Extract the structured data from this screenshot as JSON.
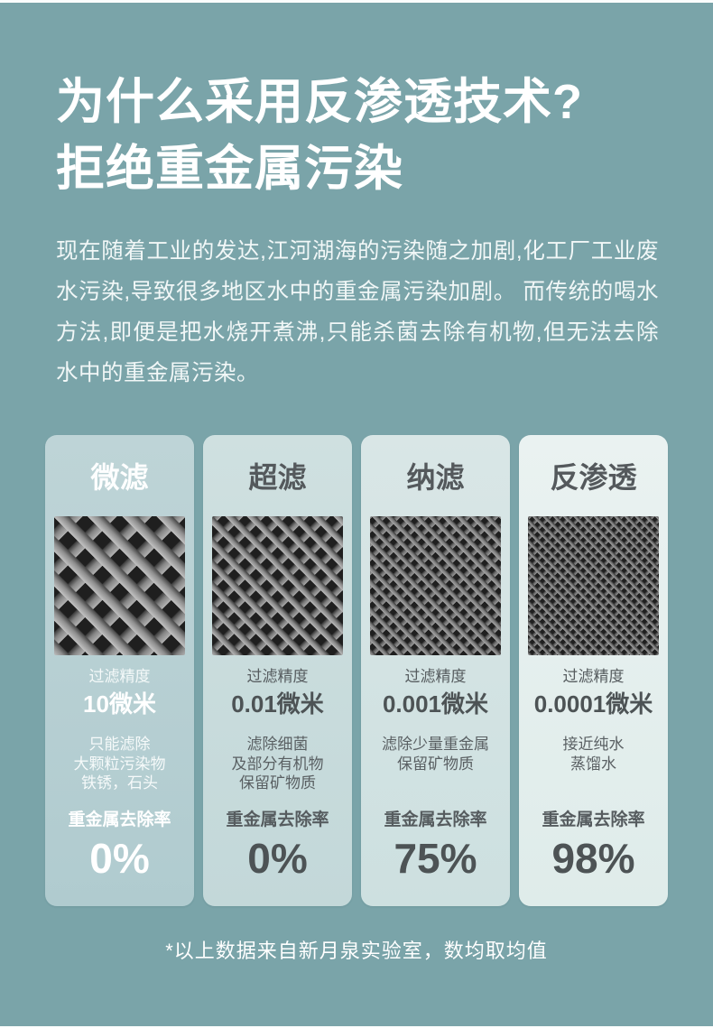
{
  "header": {
    "title_line1": "为什么采用反渗透技术?",
    "title_line2": "拒绝重金属污染"
  },
  "intro": {
    "text": "现在随着工业的发达,江河湖海的污染随之加剧,化工厂工业废水污染,导致很多地区水中的重金属污染加剧。 而传统的喝水方法,即便是把水烧开煮沸,只能杀菌去除有机物,但无法去除水中的重金属污染。"
  },
  "comparison": {
    "cards": [
      {
        "name": "微滤",
        "mesh_icon": "coarse-filter-mesh",
        "precision_label": "过滤精度",
        "precision_value": "10微米",
        "description": "只能滤除\n大颗粒污染物\n铁锈，石头",
        "removal_label": "重金属去除率",
        "removal_value": "0%"
      },
      {
        "name": "超滤",
        "mesh_icon": "medium-filter-mesh",
        "precision_label": "过滤精度",
        "precision_value": "0.01微米",
        "description": "滤除细菌\n及部分有机物\n保留矿物质",
        "removal_label": "重金属去除率",
        "removal_value": "0%"
      },
      {
        "name": "纳滤",
        "mesh_icon": "fine-filter-mesh",
        "precision_label": "过滤精度",
        "precision_value": "0.001微米",
        "description": "滤除少量重金属\n保留矿物质",
        "removal_label": "重金属去除率",
        "removal_value": "75%"
      },
      {
        "name": "反渗透",
        "mesh_icon": "ultrafine-filter-mesh",
        "precision_label": "过滤精度",
        "precision_value": "0.0001微米",
        "description": "接近纯水\n蒸馏水",
        "removal_label": "重金属去除率",
        "removal_value": "98%"
      }
    ]
  },
  "footer": {
    "note": "*以上数据来自新月泉实验室，数均取均值"
  },
  "colors": {
    "background": "#7aa4a9",
    "title_text": "#ffffff",
    "card1_bg": "#b6cfd2",
    "card2_bg": "#c9dcdd",
    "card3_bg": "#d4e3e3",
    "card4_bg": "#e6f0ef",
    "dark_text": "#54595c",
    "mesh_dark": "#1f1f1f",
    "mesh_strand": "#9c9c9c"
  }
}
